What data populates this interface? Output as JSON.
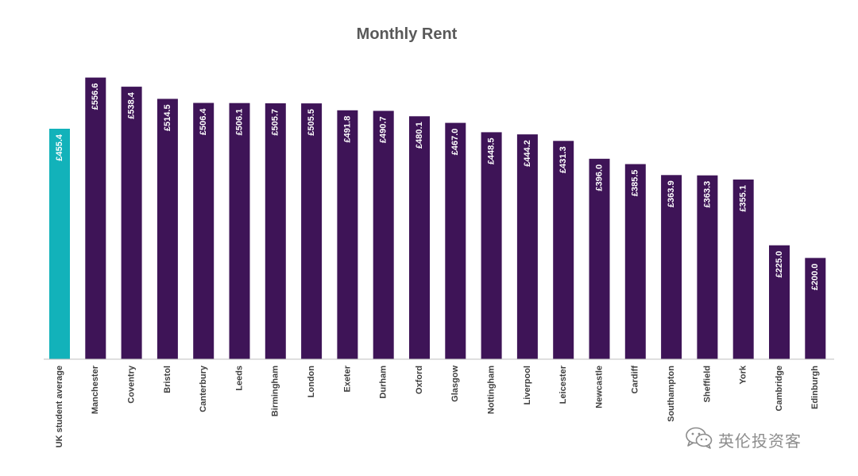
{
  "chart_data": {
    "type": "bar",
    "title": "Monthly Rent",
    "xlabel": "",
    "ylabel": "",
    "ylim": [
      0,
      560
    ],
    "grid": false,
    "legend": "none",
    "categories": [
      "UK student average",
      "Manchester",
      "Coventry",
      "Bristol",
      "Canterbury",
      "Leeds",
      "Birmingham",
      "London",
      "Exeter",
      "Durham",
      "Oxford",
      "Glasgow",
      "Nottingham",
      "Liverpool",
      "Leicester",
      "Newcastle",
      "Cardiff",
      "Southampton",
      "Sheffield",
      "York",
      "Cambridge",
      "Edinburgh"
    ],
    "values": [
      455.4,
      556.6,
      538.4,
      514.5,
      506.4,
      506.1,
      505.7,
      505.5,
      491.8,
      490.7,
      480.1,
      467.0,
      448.5,
      444.2,
      431.3,
      396.0,
      385.5,
      363.9,
      363.3,
      355.1,
      225.0,
      200.0
    ],
    "value_labels": [
      "£455.4",
      "£556.6",
      "£538.4",
      "£514.5",
      "£506.4",
      "£506.1",
      "£505.7",
      "£505.5",
      "£491.8",
      "£490.7",
      "£480.1",
      "£467.0",
      "£448.5",
      "£444.2",
      "£431.3",
      "£396.0",
      "£385.5",
      "£363.9",
      "£363.3",
      "£355.1",
      "£225.0",
      "£200.0"
    ],
    "highlight_index": 0,
    "colors": {
      "highlight": "#12B2BA",
      "bar": "#3E1457",
      "axis": "#bfbfbf"
    }
  },
  "watermark": {
    "icon": "wechat-icon",
    "text": "英伦投资客"
  }
}
